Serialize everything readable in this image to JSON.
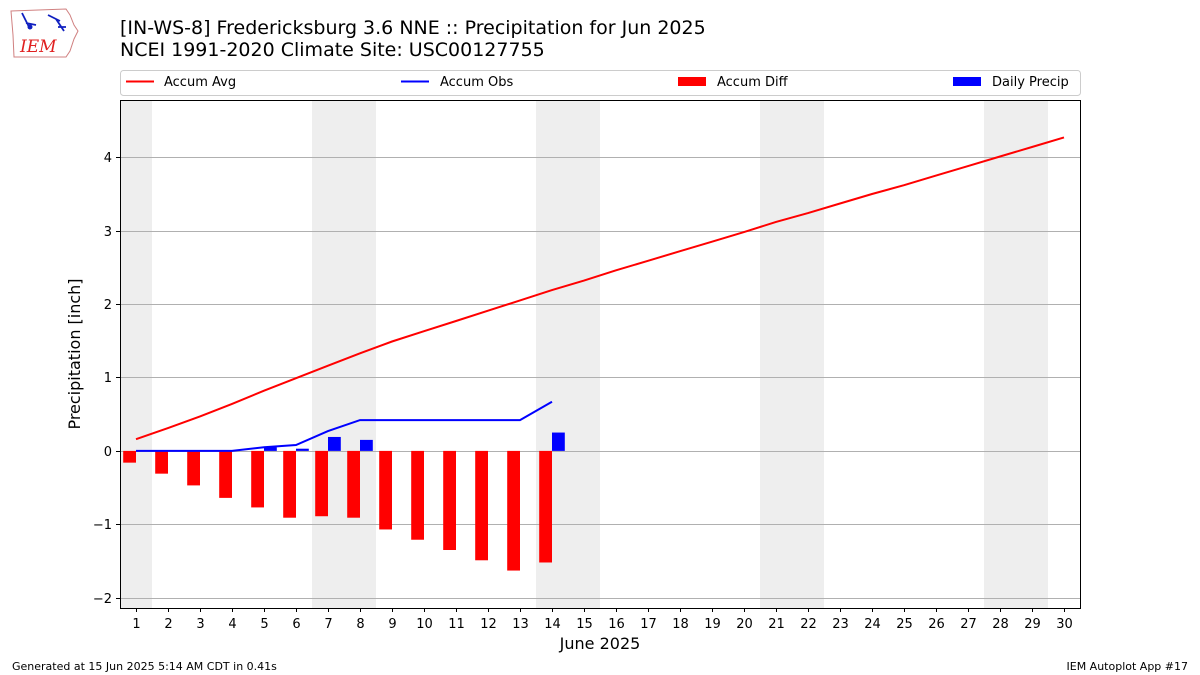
{
  "header": {
    "title_line1": "[IN-WS-8] Fredericksburg 3.6 NNE :: Precipitation for Jun 2025",
    "title_line2": "NCEI 1991-2020 Climate Site: USC00127755"
  },
  "logo": {
    "text": "IEM"
  },
  "footer": {
    "generated": "Generated at 15 Jun 2025 5:14 AM CDT in 0.41s",
    "app": "IEM Autoplot App #17"
  },
  "colors": {
    "accum_avg": "#ff0000",
    "accum_obs": "#0000ff",
    "accum_diff": "#ff0000",
    "daily_precip": "#0000ff",
    "weekend_shade": "#eeeeee",
    "grid": "#b0b0b0"
  },
  "chart_data": {
    "type": "bar",
    "title": "[IN-WS-8] Fredericksburg 3.6 NNE :: Precipitation for Jun 2025",
    "subtitle": "NCEI 1991-2020 Climate Site: USC00127755",
    "xlabel": "June 2025",
    "ylabel": "Precipitation [inch]",
    "x": [
      1,
      2,
      3,
      4,
      5,
      6,
      7,
      8,
      9,
      10,
      11,
      12,
      13,
      14,
      15,
      16,
      17,
      18,
      19,
      20,
      21,
      22,
      23,
      24,
      25,
      26,
      27,
      28,
      29,
      30
    ],
    "xlim": [
      0.5,
      30.5
    ],
    "ylim": [
      -2.14,
      4.78
    ],
    "yticks": [
      -2,
      -1,
      0,
      1,
      2,
      3,
      4
    ],
    "ytick_labels": [
      "−2",
      "−1",
      "0",
      "1",
      "2",
      "3",
      "4"
    ],
    "grid": "horizontal",
    "legend_position": "top",
    "weekend_shading": [
      [
        0.5,
        1.5
      ],
      [
        6.5,
        8.5
      ],
      [
        13.5,
        15.5
      ],
      [
        20.5,
        22.5
      ],
      [
        27.5,
        29.5
      ]
    ],
    "series": [
      {
        "name": "Accum Avg",
        "kind": "line",
        "x": [
          1,
          2,
          3,
          4,
          5,
          6,
          7,
          8,
          9,
          10,
          11,
          12,
          13,
          14,
          15,
          16,
          17,
          18,
          19,
          20,
          21,
          22,
          23,
          24,
          25,
          26,
          27,
          28,
          29,
          30
        ],
        "values": [
          0.16,
          0.31,
          0.47,
          0.64,
          0.82,
          0.99,
          1.16,
          1.33,
          1.49,
          1.63,
          1.77,
          1.91,
          2.05,
          2.19,
          2.32,
          2.46,
          2.59,
          2.72,
          2.85,
          2.98,
          3.12,
          3.24,
          3.37,
          3.5,
          3.62,
          3.75,
          3.88,
          4.01,
          4.14,
          4.27
        ]
      },
      {
        "name": "Accum Obs",
        "kind": "line",
        "x": [
          1,
          2,
          3,
          4,
          5,
          6,
          7,
          8,
          9,
          10,
          11,
          12,
          13,
          14
        ],
        "values": [
          0.0,
          0.0,
          0.0,
          0.0,
          0.05,
          0.08,
          0.27,
          0.42,
          0.42,
          0.42,
          0.42,
          0.42,
          0.42,
          0.67
        ]
      },
      {
        "name": "Accum Diff",
        "kind": "bar",
        "offset": -0.2,
        "x": [
          1,
          2,
          3,
          4,
          5,
          6,
          7,
          8,
          9,
          10,
          11,
          12,
          13,
          14
        ],
        "values": [
          -0.16,
          -0.31,
          -0.47,
          -0.64,
          -0.77,
          -0.91,
          -0.89,
          -0.91,
          -1.07,
          -1.21,
          -1.35,
          -1.49,
          -1.63,
          -1.52
        ]
      },
      {
        "name": "Daily Precip",
        "kind": "bar",
        "offset": 0.2,
        "x": [
          1,
          2,
          3,
          4,
          5,
          6,
          7,
          8,
          9,
          10,
          11,
          12,
          13,
          14
        ],
        "values": [
          0.0,
          0.0,
          0.0,
          0.0,
          0.05,
          0.03,
          0.19,
          0.15,
          0.0,
          0.0,
          0.0,
          0.0,
          0.0,
          0.25
        ]
      }
    ]
  }
}
